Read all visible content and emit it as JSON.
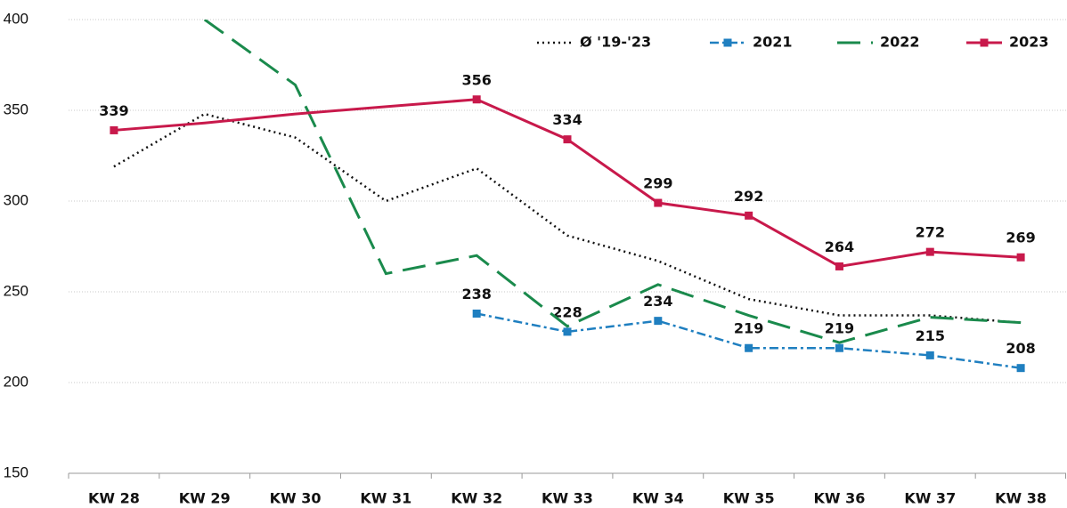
{
  "chart_data": {
    "type": "line",
    "categories": [
      "KW 28",
      "KW 29",
      "KW 30",
      "KW 31",
      "KW 32",
      "KW 33",
      "KW 34",
      "KW 35",
      "KW 36",
      "KW 37",
      "KW 38"
    ],
    "ylim": [
      150,
      400
    ],
    "yticks": [
      150,
      200,
      250,
      300,
      350,
      400
    ],
    "grid": true,
    "legend": "top-right",
    "series": [
      {
        "name": "Ø '19-'23",
        "color": "#111111",
        "style": "dotted",
        "marker": null,
        "values": [
          319,
          348,
          335,
          300,
          318,
          281,
          267,
          246,
          237,
          237,
          233
        ]
      },
      {
        "name": "2021",
        "color": "#1f7fc0",
        "style": "dashdot",
        "marker": "square",
        "data_labels": true,
        "values": [
          null,
          null,
          null,
          null,
          238,
          228,
          234,
          219,
          219,
          215,
          208
        ]
      },
      {
        "name": "2022",
        "color": "#1a8a4c",
        "style": "dashed",
        "marker": null,
        "values": [
          null,
          400,
          364,
          260,
          270,
          231,
          254,
          237,
          222,
          236,
          233
        ]
      },
      {
        "name": "2023",
        "color": "#c8194b",
        "style": "solid",
        "marker": "square",
        "values": [
          339,
          343,
          348,
          352,
          356,
          334,
          299,
          292,
          264,
          272,
          269
        ],
        "value_labels": [
          "339",
          null,
          null,
          null,
          "356",
          "334",
          "299",
          "292",
          "264",
          "272",
          "269"
        ]
      }
    ]
  }
}
